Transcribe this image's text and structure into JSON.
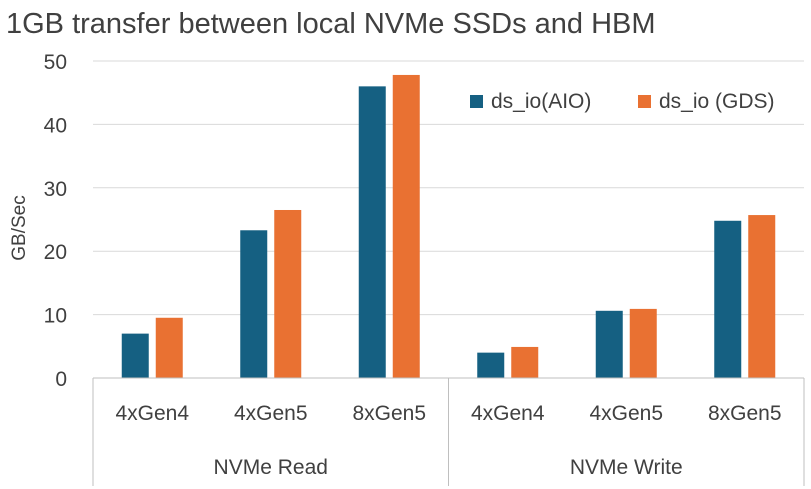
{
  "chart_data": {
    "type": "bar",
    "title": "1GB transfer between local NVMe SSDs and HBM",
    "ylabel": "GB/Sec",
    "xlabel": "",
    "ylim": [
      0,
      50
    ],
    "yticks": [
      0,
      10,
      20,
      30,
      40,
      50
    ],
    "grid": true,
    "legend_position": "top-right",
    "groups": [
      {
        "label": "NVMe Read",
        "categories": [
          "4xGen4",
          "4xGen5",
          "8xGen5"
        ]
      },
      {
        "label": "NVMe Write",
        "categories": [
          "4xGen4",
          "4xGen5",
          "8xGen5"
        ]
      }
    ],
    "categories": [
      "4xGen4",
      "4xGen5",
      "8xGen5",
      "4xGen4",
      "4xGen5",
      "8xGen5"
    ],
    "series": [
      {
        "name": "ds_io(AIO)",
        "color": "#156082",
        "values": [
          7.0,
          23.3,
          46.0,
          4.0,
          10.6,
          24.8
        ]
      },
      {
        "name": "ds_io (GDS)",
        "color": "#e97132",
        "values": [
          9.5,
          26.5,
          47.8,
          4.9,
          10.9,
          25.7
        ]
      }
    ]
  }
}
